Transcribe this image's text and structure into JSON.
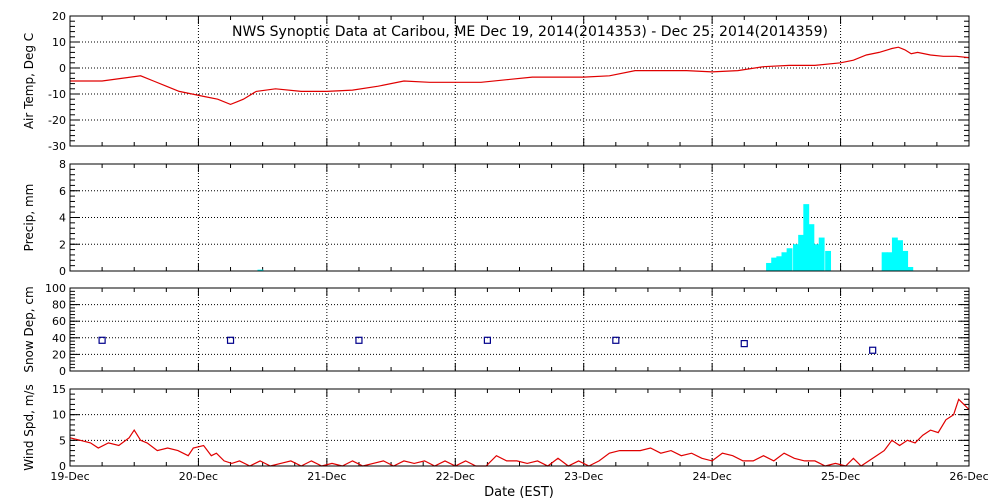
{
  "title": "NWS Synoptic Data at Caribou, ME   Dec 19, 2014(2014353) - Dec 25, 2014(2014359)",
  "xlabel": "Date (EST)",
  "x_ticks": [
    "19-Dec",
    "20-Dec",
    "21-Dec",
    "22-Dec",
    "23-Dec",
    "24-Dec",
    "25-Dec",
    "26-Dec"
  ],
  "colors": {
    "line": "#e00000",
    "precip": "#00ffff",
    "snow": "#00008b",
    "axis": "#000000"
  },
  "chart_data": [
    {
      "type": "line",
      "ylabel": "Air Temp, Deg C",
      "ylim": [
        -30,
        20
      ],
      "yticks": [
        -30,
        -20,
        -10,
        0,
        10,
        20
      ],
      "xlim": [
        0,
        7
      ],
      "grid": "dotted",
      "series": [
        {
          "x": [
            0,
            0.25,
            0.4,
            0.55,
            0.65,
            0.75,
            0.85,
            0.95,
            1.05,
            1.15,
            1.25,
            1.3,
            1.35,
            1.45,
            1.6,
            1.8,
            2.0,
            2.2,
            2.4,
            2.6,
            2.8,
            3.0,
            3.2,
            3.4,
            3.6,
            3.8,
            4.0,
            4.2,
            4.4,
            4.6,
            4.8,
            5.0,
            5.2,
            5.4,
            5.6,
            5.8,
            6.0,
            6.1,
            6.2,
            6.3,
            6.4,
            6.45,
            6.5,
            6.55,
            6.6,
            6.7,
            6.8,
            6.9,
            7.0
          ],
          "y": [
            -5,
            -5,
            -4,
            -3,
            -5,
            -7,
            -9,
            -10,
            -11,
            -12,
            -14,
            -13,
            -12,
            -9,
            -8,
            -9,
            -9,
            -8.5,
            -7,
            -5,
            -5.5,
            -5.5,
            -5.5,
            -4.5,
            -3.5,
            -3.5,
            -3.5,
            -3,
            -1,
            -1,
            -1,
            -1.5,
            -1,
            0.5,
            1,
            1,
            2,
            3,
            5,
            6,
            7.5,
            8,
            7,
            5.5,
            6,
            5,
            4.5,
            4.5,
            4
          ]
        }
      ]
    },
    {
      "type": "bar",
      "ylabel": "Precip, mm",
      "ylim": [
        0,
        8
      ],
      "yticks": [
        0,
        2,
        4,
        6,
        8
      ],
      "xlim": [
        0,
        7
      ],
      "grid": "dotted",
      "bar_width_days": 0.0417,
      "series": [
        {
          "x": [
            1.46,
            5.42,
            5.46,
            5.5,
            5.54,
            5.58,
            5.63,
            5.67,
            5.71,
            5.75,
            5.79,
            5.83,
            5.88,
            6.32,
            6.36,
            6.4,
            6.44,
            6.48,
            6.52
          ],
          "values": [
            0.1,
            0.6,
            1.0,
            1.1,
            1.4,
            1.7,
            2.0,
            2.7,
            5.0,
            3.5,
            2.0,
            2.5,
            1.5,
            1.4,
            1.4,
            2.5,
            2.3,
            1.5,
            0.3
          ]
        }
      ]
    },
    {
      "type": "scatter",
      "ylabel": "Snow Dep, cm",
      "ylim": [
        0,
        100
      ],
      "yticks": [
        0,
        20,
        40,
        60,
        80,
        100
      ],
      "xlim": [
        0,
        7
      ],
      "grid": "dotted",
      "series": [
        {
          "x": [
            0.25,
            1.25,
            2.25,
            3.25,
            4.25,
            5.25,
            6.25
          ],
          "values": [
            37,
            37,
            37,
            37,
            37,
            33,
            25
          ]
        }
      ]
    },
    {
      "type": "line",
      "ylabel": "Wind Spd, m/s",
      "ylim": [
        0,
        15
      ],
      "yticks": [
        0,
        5,
        10,
        15
      ],
      "xlim": [
        0,
        7
      ],
      "grid": "dotted",
      "series": [
        {
          "x": [
            0,
            0.08,
            0.16,
            0.22,
            0.3,
            0.38,
            0.46,
            0.5,
            0.55,
            0.6,
            0.68,
            0.76,
            0.84,
            0.92,
            0.96,
            1.04,
            1.1,
            1.14,
            1.2,
            1.26,
            1.32,
            1.4,
            1.48,
            1.56,
            1.64,
            1.72,
            1.8,
            1.88,
            1.96,
            2.04,
            2.12,
            2.2,
            2.28,
            2.36,
            2.44,
            2.52,
            2.6,
            2.68,
            2.76,
            2.84,
            2.92,
            3.0,
            3.08,
            3.16,
            3.24,
            3.32,
            3.4,
            3.48,
            3.56,
            3.64,
            3.72,
            3.8,
            3.88,
            3.96,
            4.04,
            4.12,
            4.2,
            4.28,
            4.36,
            4.44,
            4.52,
            4.6,
            4.68,
            4.76,
            4.84,
            4.92,
            5.0,
            5.08,
            5.16,
            5.24,
            5.32,
            5.4,
            5.48,
            5.56,
            5.64,
            5.72,
            5.8,
            5.88,
            5.96,
            6.04,
            6.1,
            6.16,
            6.22,
            6.28,
            6.34,
            6.4,
            6.46,
            6.52,
            6.58,
            6.64,
            6.7,
            6.76,
            6.82,
            6.88,
            6.92,
            6.96,
            7.0
          ],
          "values": [
            5.5,
            5,
            4.5,
            3.5,
            4.5,
            4,
            5.5,
            7,
            5,
            4.5,
            3,
            3.5,
            3,
            2,
            3.5,
            4,
            2,
            2.5,
            1,
            0.5,
            1,
            0,
            1,
            0,
            0.5,
            1,
            0,
            1,
            0,
            0.5,
            0,
            1,
            0,
            0.5,
            1,
            0,
            1,
            0.5,
            1,
            0,
            1,
            0,
            1,
            0,
            0,
            2,
            1,
            1,
            0.5,
            1,
            0,
            1.5,
            0,
            1,
            0,
            1,
            2.5,
            3,
            3,
            3,
            3.5,
            2.5,
            3,
            2,
            2.5,
            1.5,
            1,
            2.5,
            2,
            1,
            1,
            2,
            1,
            2.5,
            1.5,
            1,
            1,
            0,
            0.5,
            0,
            1.5,
            0,
            1,
            2,
            3,
            5,
            4,
            5,
            4.5,
            6,
            7,
            6.5,
            9,
            10,
            13,
            12,
            11
          ]
        }
      ]
    }
  ]
}
